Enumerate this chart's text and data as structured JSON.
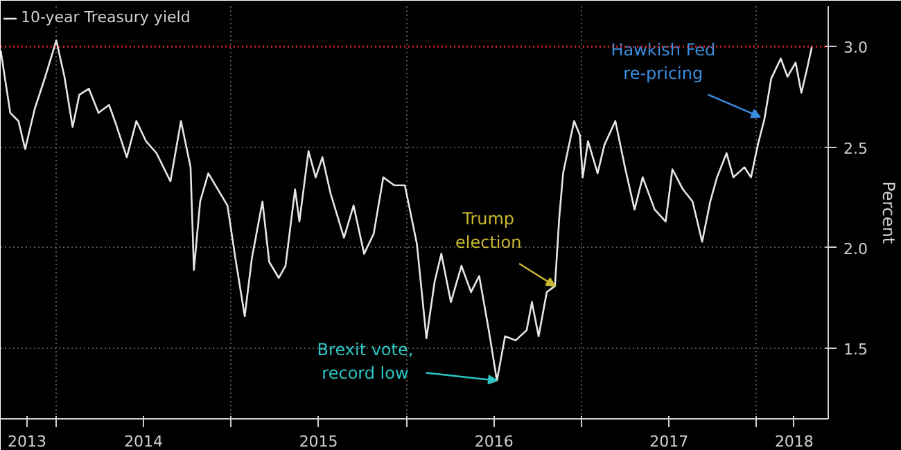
{
  "chart_data": {
    "type": "line",
    "x": [
      "2013-09-07",
      "2013-09-27",
      "2013-10-14",
      "2013-10-28",
      "2013-11-17",
      "2013-12-09",
      "2014-01-01",
      "2014-01-18",
      "2014-02-04",
      "2014-02-18",
      "2014-03-10",
      "2014-03-30",
      "2014-04-21",
      "2014-05-06",
      "2014-05-28",
      "2014-06-17",
      "2014-07-07",
      "2014-07-29",
      "2014-08-27",
      "2014-09-18",
      "2014-10-08",
      "2014-10-15",
      "2014-10-28",
      "2014-11-14",
      "2014-12-04",
      "2014-12-24",
      "2015-01-10",
      "2015-01-29",
      "2015-02-13",
      "2015-03-07",
      "2015-03-21",
      "2015-04-10",
      "2015-04-24",
      "2015-05-14",
      "2015-05-23",
      "2015-06-11",
      "2015-06-26",
      "2015-07-10",
      "2015-07-27",
      "2015-08-24",
      "2015-09-13",
      "2015-10-05",
      "2015-10-25",
      "2015-11-14",
      "2015-12-07",
      "2015-12-29",
      "2016-01-23",
      "2016-02-12",
      "2016-02-29",
      "2016-03-14",
      "2016-04-03",
      "2016-04-25",
      "2016-05-15",
      "2016-06-01",
      "2016-06-21",
      "2016-07-08",
      "2016-07-25",
      "2016-08-16",
      "2016-09-08",
      "2016-09-19",
      "2016-10-03",
      "2016-10-20",
      "2016-11-06",
      "2016-11-15",
      "2016-11-23",
      "2016-12-16",
      "2016-12-28",
      "2017-01-03",
      "2017-01-14",
      "2017-02-03",
      "2017-02-17",
      "2017-03-12",
      "2017-04-01",
      "2017-04-21",
      "2017-05-08",
      "2017-06-02",
      "2017-06-25",
      "2017-07-09",
      "2017-07-31",
      "2017-08-20",
      "2017-09-09",
      "2017-09-26",
      "2017-10-10",
      "2017-10-30",
      "2017-11-13",
      "2017-12-06",
      "2017-12-20",
      "2018-01-03",
      "2018-01-17",
      "2018-01-31",
      "2018-02-20",
      "2018-03-06",
      "2018-03-23",
      "2018-04-04",
      "2018-04-15",
      "2018-04-26"
    ],
    "series": [
      {
        "name": "10-year Treasury yield",
        "color": "#e6e6e6",
        "values": [
          2.98,
          2.67,
          2.63,
          2.49,
          2.69,
          2.85,
          3.03,
          2.85,
          2.6,
          2.76,
          2.79,
          2.67,
          2.71,
          2.61,
          2.45,
          2.63,
          2.53,
          2.47,
          2.33,
          2.63,
          2.4,
          1.89,
          2.23,
          2.37,
          2.29,
          2.21,
          1.94,
          1.66,
          1.95,
          2.23,
          1.93,
          1.85,
          1.91,
          2.29,
          2.13,
          2.48,
          2.35,
          2.45,
          2.27,
          2.05,
          2.21,
          1.97,
          2.07,
          2.35,
          2.31,
          2.31,
          2.02,
          1.55,
          1.83,
          1.97,
          1.73,
          1.91,
          1.78,
          1.86,
          1.59,
          1.34,
          1.56,
          1.54,
          1.59,
          1.73,
          1.56,
          1.78,
          1.81,
          2.15,
          2.37,
          2.63,
          2.56,
          2.35,
          2.53,
          2.37,
          2.51,
          2.63,
          2.4,
          2.19,
          2.35,
          2.19,
          2.13,
          2.39,
          2.29,
          2.23,
          2.03,
          2.23,
          2.35,
          2.47,
          2.35,
          2.4,
          2.35,
          2.51,
          2.64,
          2.84,
          2.94,
          2.85,
          2.92,
          2.77,
          2.88,
          3.0
        ]
      }
    ],
    "ylabel": "Percent",
    "xlim": [
      "2013-09-07",
      "2018-05-30"
    ],
    "ylim": [
      1.15,
      3.2
    ],
    "yticks": [
      1.5,
      {
        "value": 2,
        "label": "2.0"
      },
      2.5,
      {
        "value": 3,
        "label": "3.0"
      }
    ],
    "xticks": [
      {
        "value": "2013-11-01",
        "label": "2013"
      },
      {
        "value": "2014-01-01",
        "label": null
      },
      {
        "value": "2014-07-02",
        "label": "2014"
      },
      {
        "value": "2015-01-01",
        "label": null
      },
      {
        "value": "2015-07-02",
        "label": "2015"
      },
      {
        "value": "2016-01-01",
        "label": null
      },
      {
        "value": "2016-07-02",
        "label": "2016"
      },
      {
        "value": "2017-01-01",
        "label": null
      },
      {
        "value": "2017-07-02",
        "label": "2017"
      },
      {
        "value": "2018-01-01",
        "label": null
      },
      {
        "value": "2018-03-20",
        "label": "2018"
      }
    ],
    "ref_lines": [
      {
        "axis": "y",
        "value": 3.0,
        "color": "#d0202a",
        "line_style": "dotted"
      }
    ],
    "annotations": [
      {
        "text": "Brexit vote,\nrecord low",
        "x": "2016-07-08",
        "y": 1.34
      },
      {
        "text": "Trump\nelection",
        "x": "2016-11-06",
        "y": 1.81
      },
      {
        "text": "Hawkish Fed\nre-pricing",
        "x": "2018-01-08",
        "y": 2.65
      }
    ],
    "grid": true,
    "legend": "top left",
    "marker": "none",
    "line_style": "solid"
  }
}
